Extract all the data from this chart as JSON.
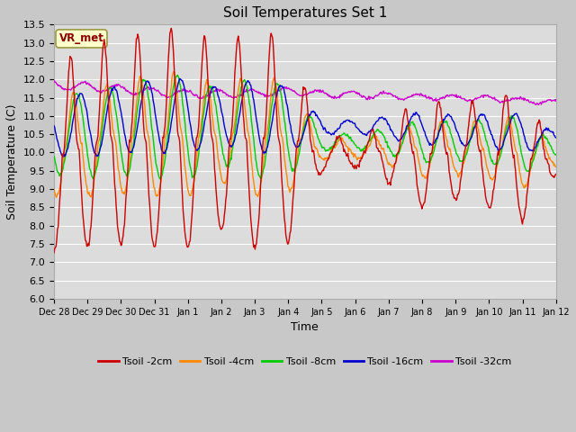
{
  "title": "Soil Temperatures Set 1",
  "xlabel": "Time",
  "ylabel": "Soil Temperature (C)",
  "ylim": [
    6.0,
    13.5
  ],
  "xtick_labels": [
    "Dec 28",
    "Dec 29",
    "Dec 30",
    "Dec 31",
    "Jan 1",
    "Jan 2",
    "Jan 3",
    "Jan 4",
    "Jan 5",
    "Jan 6",
    "Jan 7",
    "Jan 8",
    "Jan 9",
    "Jan 10",
    "Jan 11",
    "Jan 12"
  ],
  "colors": {
    "Tsoil_2cm": "#cc0000",
    "Tsoil_4cm": "#ff8800",
    "Tsoil_8cm": "#00cc00",
    "Tsoil_16cm": "#0000cc",
    "Tsoil_32cm": "#cc00cc"
  },
  "legend_labels": [
    "Tsoil -2cm",
    "Tsoil -4cm",
    "Tsoil -8cm",
    "Tsoil -16cm",
    "Tsoil -32cm"
  ],
  "axes_bg": "#dcdcdc",
  "fig_bg": "#c8c8c8",
  "grid_color": "#ffffff",
  "vr_met_label": "VR_met",
  "vr_met_bg": "#ffffcc",
  "vr_met_fg": "#880000",
  "vr_met_border": "#999944"
}
